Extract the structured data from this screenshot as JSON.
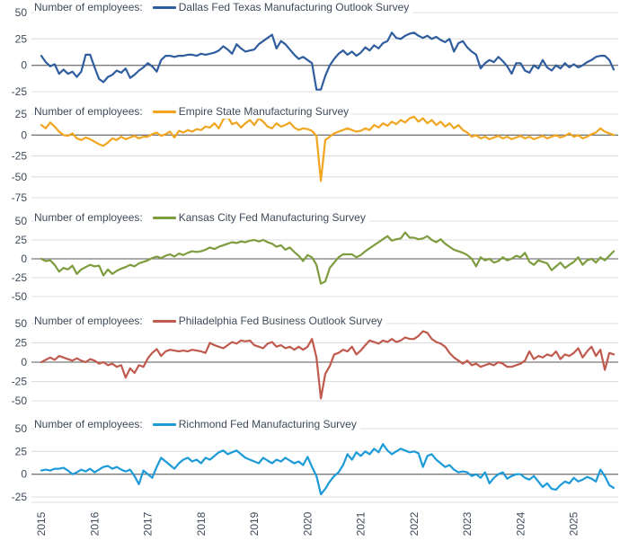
{
  "legend_prefix": "Number of employees:",
  "colors": {
    "background": "#ffffff",
    "text": "#3e4a59",
    "grid": "#dcdcdc",
    "zero_line": "#7a7a7a"
  },
  "x_axis": {
    "tick_labels": [
      "2015",
      "2016",
      "2017",
      "2018",
      "2019",
      "2020",
      "2021",
      "2022",
      "2023",
      "2024",
      "2025"
    ]
  },
  "chart_data": [
    {
      "type": "line",
      "name": "Dallas Fed Texas Manufacturing Outlook Survey",
      "color": "#2f5d9e",
      "ylim": [
        -25,
        50
      ],
      "yticks": [
        50,
        25,
        0,
        -25
      ],
      "x_frequency": "monthly",
      "values": [
        9,
        3,
        -1,
        1,
        -8,
        -4,
        -8,
        -6,
        -11,
        -6,
        10,
        10,
        -2,
        -13,
        -16,
        -11,
        -9,
        -5,
        -7,
        -3,
        -12,
        -9,
        -5,
        -2,
        2,
        -1,
        -6,
        5,
        9,
        9,
        8,
        9,
        9,
        10,
        10,
        9,
        11,
        10,
        11,
        12,
        14,
        18,
        15,
        11,
        20,
        16,
        13,
        14,
        15,
        20,
        23,
        26,
        29,
        16,
        23,
        20,
        15,
        10,
        6,
        8,
        5,
        2,
        -23,
        -23,
        -10,
        0,
        6,
        11,
        14,
        10,
        13,
        9,
        12,
        17,
        14,
        19,
        16,
        21,
        23,
        31,
        26,
        25,
        28,
        30,
        31,
        28,
        26,
        28,
        25,
        27,
        24,
        22,
        25,
        13,
        21,
        23,
        17,
        13,
        10,
        -3,
        2,
        5,
        3,
        8,
        4,
        -1,
        -8,
        2,
        2,
        -5,
        -7,
        0,
        -3,
        5,
        -2,
        -5,
        0,
        -3,
        2,
        -2,
        1,
        -2,
        0,
        3,
        5,
        8,
        9,
        9,
        5,
        -4
      ]
    },
    {
      "type": "line",
      "name": "Empire State Manufacturing Survey",
      "color": "#f2a51f",
      "ylim": [
        -75,
        25
      ],
      "yticks": [
        25,
        0,
        -25,
        -50,
        -75
      ],
      "x_frequency": "monthly",
      "values": [
        12,
        8,
        15,
        10,
        4,
        0,
        -1,
        2,
        -4,
        -6,
        -3,
        -5,
        -8,
        -11,
        -13,
        -9,
        -4,
        -6,
        -2,
        -5,
        -3,
        -1,
        -4,
        -2,
        -2,
        1,
        3,
        -1,
        1,
        4,
        -3,
        5,
        3,
        6,
        4,
        7,
        6,
        10,
        9,
        14,
        8,
        19,
        22,
        13,
        15,
        9,
        14,
        18,
        12,
        20,
        16,
        10,
        8,
        14,
        10,
        12,
        15,
        9,
        6,
        8,
        7,
        5,
        -1,
        -55,
        -6,
        -2,
        2,
        4,
        6,
        8,
        6,
        4,
        5,
        8,
        6,
        12,
        9,
        14,
        11,
        16,
        13,
        18,
        15,
        20,
        22,
        16,
        20,
        14,
        18,
        12,
        16,
        10,
        14,
        8,
        12,
        6,
        3,
        -2,
        0,
        -4,
        -2,
        -5,
        -3,
        -1,
        -4,
        -2,
        -5,
        -3,
        -1,
        -4,
        -2,
        -5,
        -3,
        -1,
        -4,
        -2,
        0,
        -3,
        -1,
        2,
        -2,
        0,
        -4,
        -2,
        1,
        3,
        8,
        4,
        2,
        0
      ]
    },
    {
      "type": "line",
      "name": "Kansas City Fed Manufacturing Survey",
      "color": "#7d9c3e",
      "ylim": [
        -50,
        50
      ],
      "yticks": [
        50,
        25,
        0,
        -25,
        -50
      ],
      "x_frequency": "monthly",
      "values": [
        0,
        -3,
        -2,
        -8,
        -17,
        -12,
        -14,
        -9,
        -20,
        -14,
        -11,
        -8,
        -10,
        -9,
        -22,
        -14,
        -20,
        -16,
        -13,
        -11,
        -8,
        -10,
        -6,
        -4,
        -2,
        1,
        3,
        1,
        4,
        6,
        3,
        7,
        5,
        8,
        10,
        9,
        10,
        12,
        15,
        13,
        16,
        18,
        20,
        22,
        21,
        23,
        22,
        24,
        25,
        23,
        25,
        22,
        20,
        16,
        18,
        12,
        15,
        9,
        4,
        -3,
        5,
        2,
        -8,
        -33,
        -30,
        -12,
        -5,
        2,
        6,
        6,
        6,
        2,
        5,
        10,
        14,
        18,
        22,
        26,
        30,
        24,
        26,
        27,
        35,
        28,
        28,
        26,
        27,
        30,
        25,
        22,
        26,
        20,
        16,
        12,
        10,
        8,
        5,
        0,
        -10,
        2,
        -2,
        0,
        -5,
        -3,
        2,
        -2,
        0,
        4,
        2,
        8,
        -4,
        -8,
        -2,
        -4,
        -6,
        -15,
        -10,
        -5,
        -12,
        -8,
        -4,
        2,
        -8,
        -2,
        0,
        -5,
        2,
        -2,
        4,
        10
      ]
    },
    {
      "type": "line",
      "name": "Philadelphia Fed Business Outlook Survey",
      "color": "#c05a4e",
      "ylim": [
        -50,
        50
      ],
      "yticks": [
        50,
        25,
        0,
        -25,
        -50
      ],
      "x_frequency": "monthly",
      "values": [
        0,
        3,
        6,
        3,
        8,
        6,
        4,
        2,
        5,
        2,
        0,
        4,
        2,
        -2,
        0,
        -4,
        -2,
        -6,
        -4,
        -20,
        -8,
        -14,
        -4,
        -6,
        5,
        12,
        17,
        8,
        14,
        16,
        15,
        14,
        15,
        14,
        16,
        15,
        14,
        12,
        25,
        22,
        20,
        18,
        22,
        26,
        24,
        28,
        27,
        28,
        22,
        20,
        18,
        24,
        26,
        20,
        22,
        18,
        20,
        16,
        20,
        16,
        20,
        30,
        6,
        -47,
        -15,
        -5,
        10,
        12,
        16,
        14,
        20,
        10,
        15,
        22,
        28,
        26,
        24,
        28,
        26,
        30,
        26,
        28,
        32,
        30,
        30,
        34,
        40,
        38,
        30,
        26,
        24,
        20,
        12,
        6,
        2,
        -2,
        2,
        -4,
        -2,
        -6,
        -4,
        -2,
        -4,
        0,
        -2,
        -6,
        -6,
        -4,
        -2,
        2,
        14,
        4,
        8,
        6,
        10,
        8,
        14,
        4,
        10,
        8,
        12,
        18,
        6,
        14,
        20,
        8,
        16,
        -10,
        12,
        10
      ]
    },
    {
      "type": "line",
      "name": "Richmond Fed Manufacturing Survey",
      "color": "#1c9bd8",
      "ylim": [
        -25,
        50
      ],
      "yticks": [
        50,
        25,
        0,
        -25
      ],
      "x_frequency": "monthly",
      "values": [
        4,
        5,
        4,
        6,
        6,
        7,
        4,
        0,
        2,
        5,
        3,
        6,
        2,
        5,
        8,
        9,
        6,
        8,
        5,
        3,
        5,
        -2,
        -11,
        4,
        0,
        -4,
        8,
        18,
        14,
        10,
        6,
        12,
        16,
        18,
        14,
        16,
        12,
        18,
        16,
        20,
        24,
        26,
        22,
        24,
        26,
        22,
        18,
        16,
        14,
        12,
        18,
        15,
        12,
        16,
        14,
        18,
        15,
        12,
        14,
        10,
        19,
        8,
        -2,
        -22,
        -16,
        -8,
        -2,
        2,
        10,
        22,
        16,
        24,
        20,
        25,
        22,
        28,
        24,
        33,
        26,
        22,
        25,
        28,
        26,
        24,
        25,
        23,
        8,
        20,
        22,
        16,
        12,
        8,
        10,
        5,
        2,
        3,
        2,
        -2,
        0,
        -4,
        2,
        -10,
        -4,
        0,
        2,
        -5,
        -2,
        0,
        0,
        -4,
        -6,
        -2,
        -8,
        -14,
        -10,
        -16,
        -17,
        -12,
        -8,
        -10,
        -4,
        -8,
        -6,
        -3,
        -5,
        -8,
        5,
        -2,
        -12,
        -15
      ]
    }
  ]
}
